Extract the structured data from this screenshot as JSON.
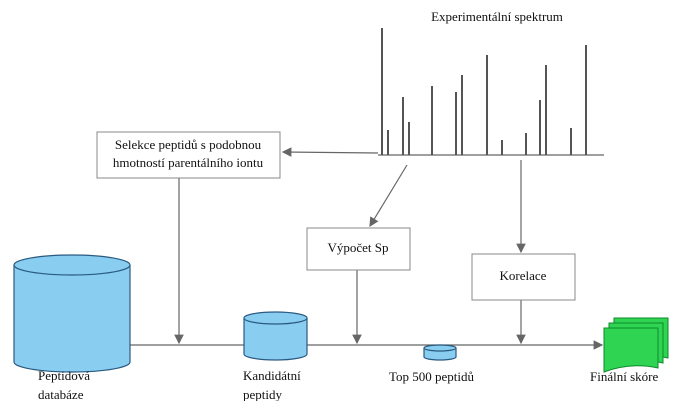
{
  "title": "Experimentální spektrum",
  "nodes": [
    {
      "label": [
        "Selekce peptidů s podobnou",
        "hmotností parentálního iontu"
      ]
    },
    {
      "label": [
        "Výpočet Sp"
      ]
    },
    {
      "label": [
        "Korelace"
      ]
    },
    {
      "label": [
        "Peptidová",
        "databáze"
      ]
    },
    {
      "label": [
        "Kandidátní",
        "peptidy"
      ]
    },
    {
      "label": [
        "Top 500 peptidů"
      ]
    },
    {
      "label": [
        "Finální skóre"
      ]
    }
  ]
}
